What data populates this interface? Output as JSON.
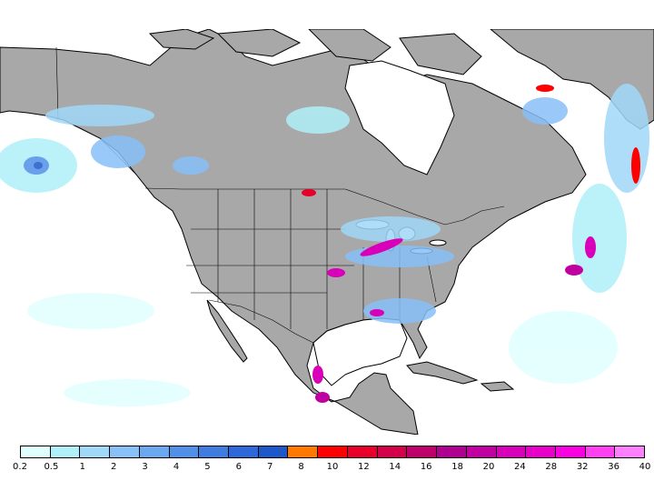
{
  "map": {
    "region": "North America",
    "land_color": "#a8a8a8",
    "ocean_color": "#ffffff",
    "border_color": "#000000"
  },
  "legend": {
    "labels": [
      "0.2",
      "0.5",
      "1",
      "2",
      "3",
      "4",
      "5",
      "6",
      "7",
      "8",
      "10",
      "12",
      "14",
      "16",
      "18",
      "20",
      "24",
      "28",
      "32",
      "36",
      "40"
    ],
    "colors": [
      "#e0ffff",
      "#b0f0f8",
      "#a0d8f8",
      "#88c0f8",
      "#6aa8f0",
      "#5090e8",
      "#3e7ce0",
      "#2e68d8",
      "#1e58c8",
      "#ff7800",
      "#ff0000",
      "#e8002a",
      "#d4004a",
      "#c0006a",
      "#b00090",
      "#c000a0",
      "#d800b8",
      "#e800c8",
      "#f800e0",
      "#ff40f0",
      "#ff80ff"
    ]
  }
}
